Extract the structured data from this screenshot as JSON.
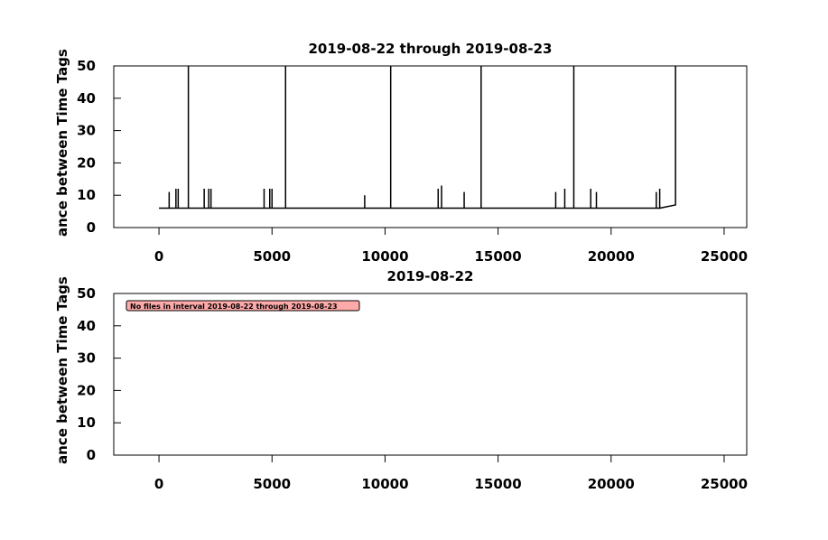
{
  "chart_data": [
    {
      "type": "line",
      "title": "2019-08-22 through 2019-08-23",
      "y_label": "ance between Time Tags",
      "xlim": [
        -2000,
        26000
      ],
      "xticks": [
        0,
        5000,
        10000,
        15000,
        20000,
        25000
      ],
      "ylim": [
        0,
        50
      ],
      "yticks": [
        0,
        10,
        20,
        30,
        40,
        50
      ],
      "x": [
        0,
        450,
        450,
        450,
        750,
        750,
        750,
        850,
        850,
        850,
        1300,
        1300,
        1300,
        2000,
        2000,
        2000,
        2200,
        2200,
        2200,
        2300,
        2300,
        2300,
        4650,
        4650,
        4650,
        4900,
        4900,
        4900,
        5000,
        5000,
        5000,
        5600,
        5600,
        5600,
        9100,
        9100,
        9100,
        10250,
        10250,
        10250,
        12350,
        12350,
        12350,
        12500,
        12500,
        12500,
        13500,
        13500,
        13500,
        14250,
        14250,
        14250,
        17550,
        17550,
        17550,
        17950,
        17950,
        17950,
        18350,
        18350,
        18350,
        19100,
        19100,
        19100,
        19350,
        19350,
        19350,
        22000,
        22000,
        22000,
        22150,
        22150,
        22150,
        22850,
        22850
      ],
      "series": [
        {
          "color": "#000000",
          "values": [
            6,
            6,
            11,
            6,
            6,
            12,
            6,
            6,
            12,
            6,
            6,
            50,
            6,
            6,
            12,
            6,
            6,
            12,
            6,
            6,
            12,
            6,
            6,
            12,
            6,
            6,
            12,
            6,
            6,
            12,
            6,
            6,
            50,
            6,
            6,
            10,
            6,
            6,
            50,
            6,
            6,
            12,
            6,
            6,
            13,
            6,
            6,
            11,
            6,
            6,
            50,
            6,
            6,
            11,
            6,
            6,
            12,
            6,
            6,
            50,
            6,
            6,
            12,
            6,
            6,
            11,
            6,
            6,
            11,
            6,
            6,
            12,
            6,
            7,
            50
          ]
        }
      ]
    },
    {
      "type": "line",
      "title": "2019-08-22",
      "y_label": "ance between Time Tags",
      "xlim": [
        -2000,
        26000
      ],
      "xticks": [
        0,
        5000,
        10000,
        15000,
        20000,
        25000
      ],
      "ylim": [
        0,
        50
      ],
      "yticks": [
        0,
        10,
        20,
        30,
        40,
        50
      ],
      "annotation": "No files in interval 2019-08-22 through 2019-08-23"
    }
  ]
}
